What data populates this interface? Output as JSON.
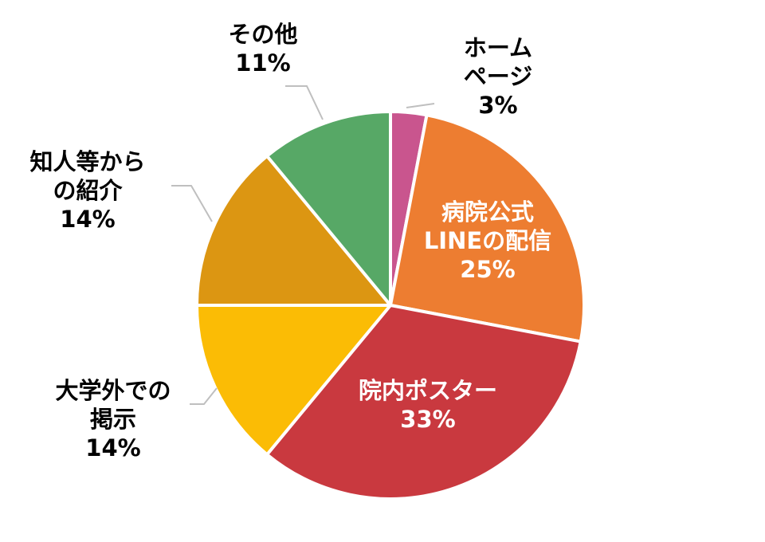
{
  "chart_data": {
    "type": "pie",
    "categories": [
      "ホームページ",
      "病院公式LINEの配信",
      "院内ポスター",
      "大学外での掲示",
      "知人等からの紹介",
      "その他"
    ],
    "values": [
      3,
      25,
      33,
      14,
      14,
      11
    ],
    "value_labels": [
      "3%",
      "25%",
      "33%",
      "14%",
      "14%",
      "11%"
    ],
    "colors": [
      "#c9558e",
      "#ed7d31",
      "#c9393f",
      "#fbbc05",
      "#dc9612",
      "#57a866"
    ]
  }
}
